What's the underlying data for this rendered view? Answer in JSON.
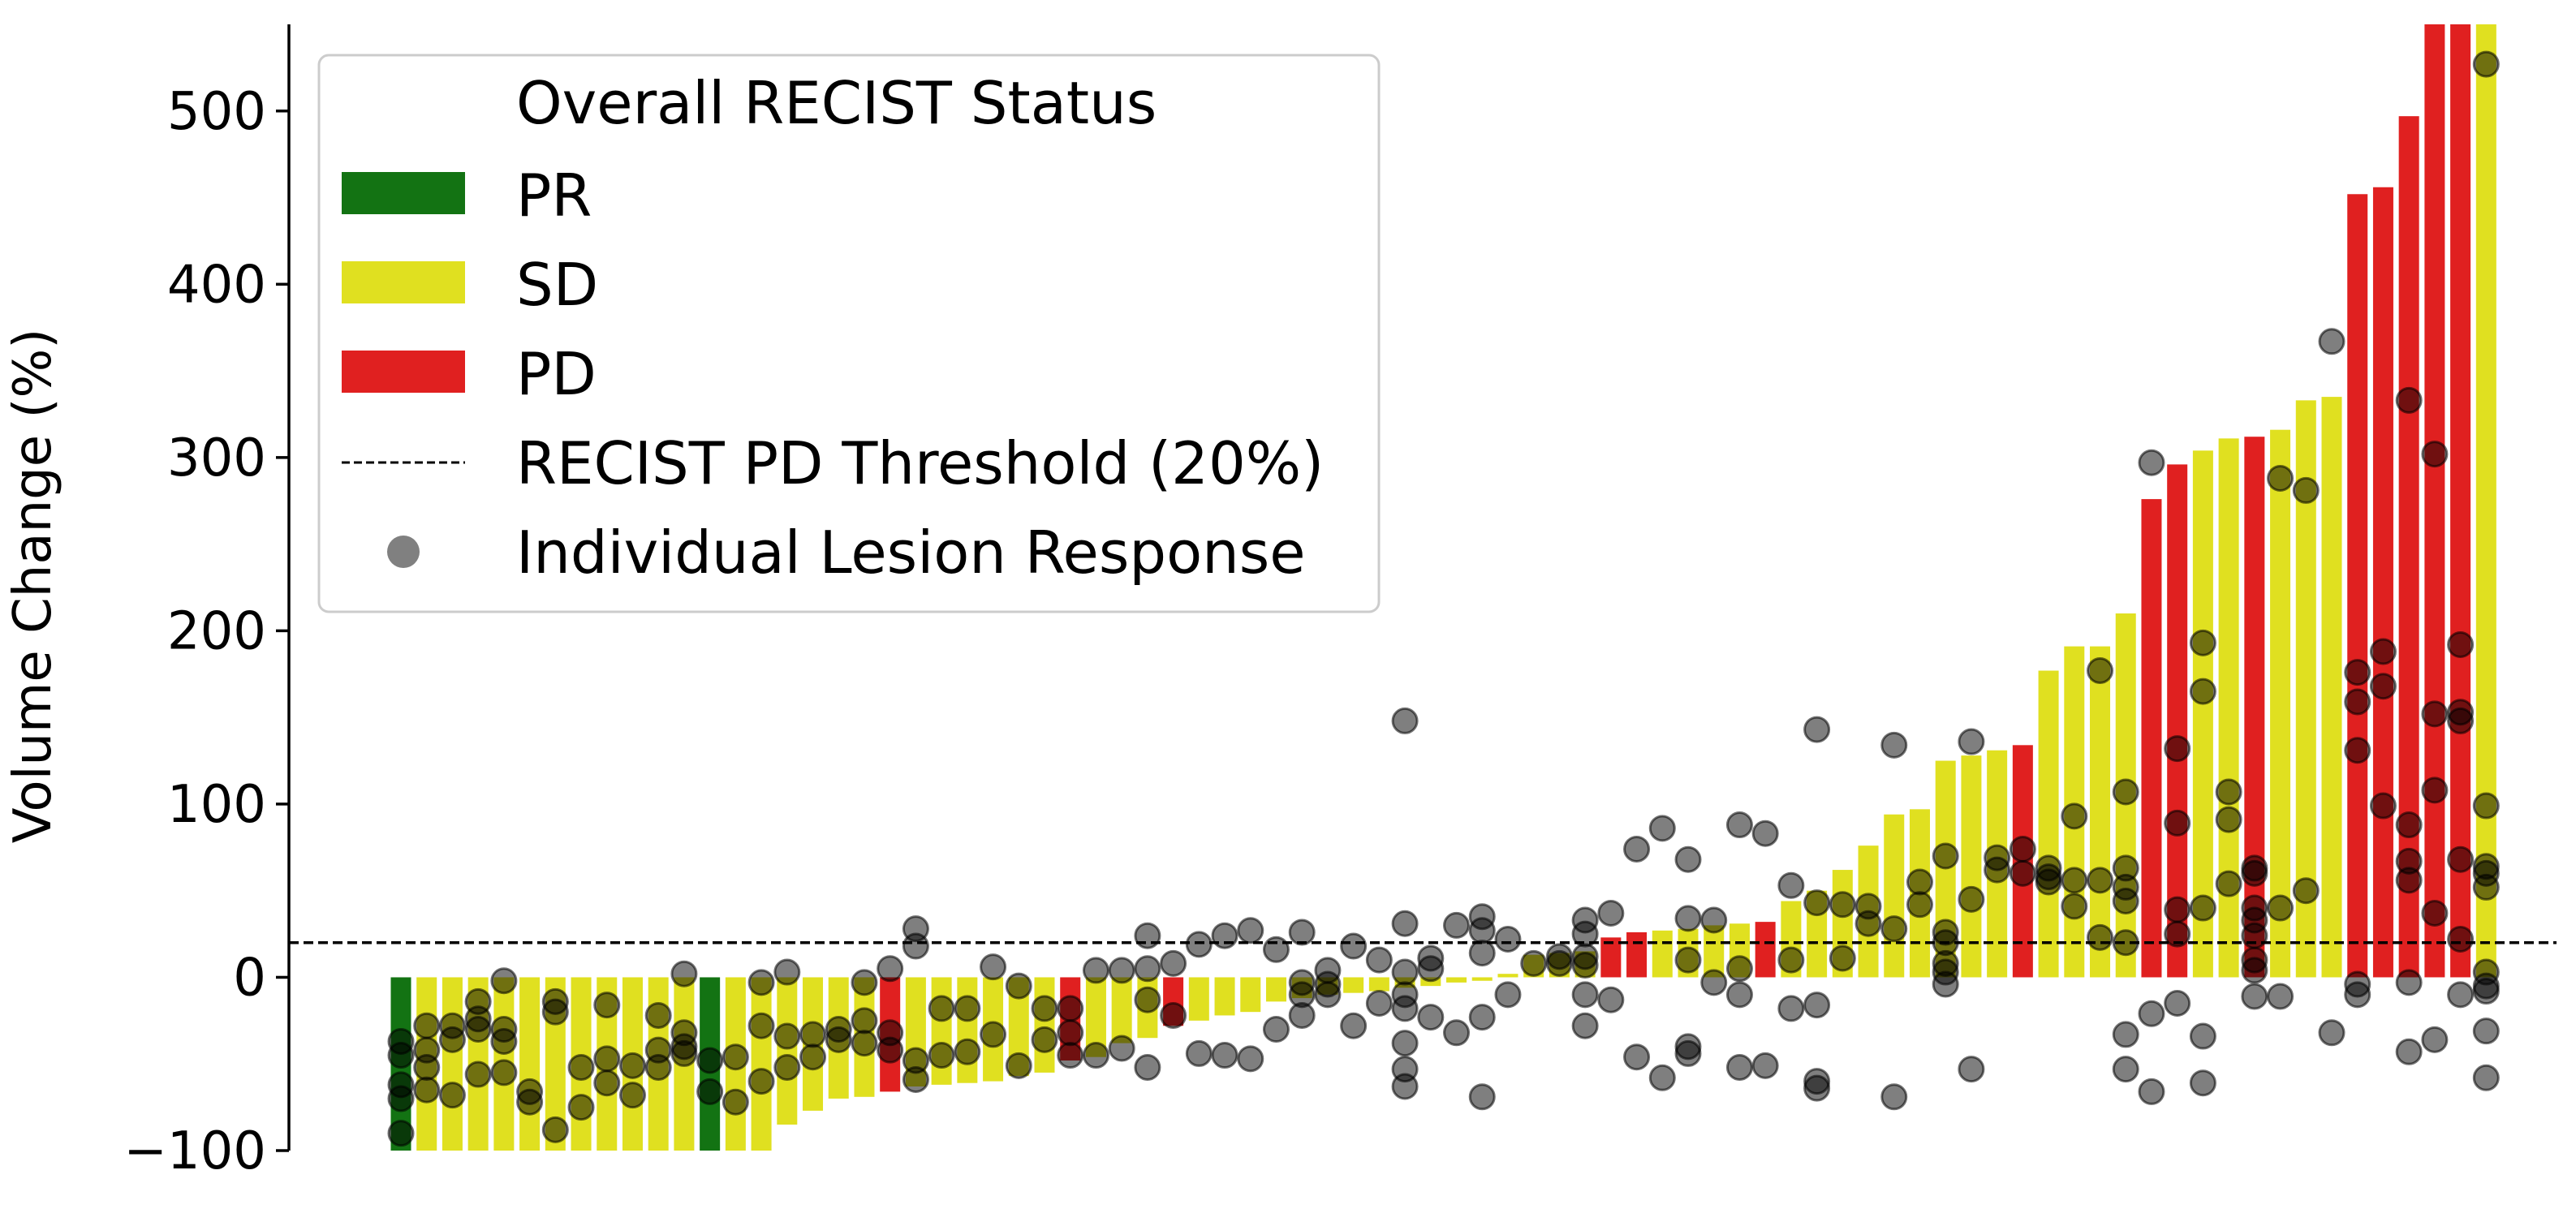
{
  "chart_data": {
    "type": "bar",
    "title": "",
    "xlabel": "",
    "ylabel": "Volume Change (%)",
    "ylim": [
      -100,
      550
    ],
    "yticks": [
      -100,
      0,
      100,
      200,
      300,
      400,
      500
    ],
    "ytick_labels": [
      "−100",
      "0",
      "100",
      "200",
      "300",
      "400",
      "500"
    ],
    "grid": false,
    "colors": {
      "PR": "#137313",
      "SD": "#e0e020",
      "PD": "#e02020",
      "lesion": "#808080"
    },
    "threshold": {
      "label": "RECIST PD Threshold (20%)",
      "value": 20
    },
    "legend": {
      "placement": "top-left",
      "title": "Overall RECIST Status",
      "entries": [
        {
          "label": "PR",
          "kind": "bar",
          "color": "#137313"
        },
        {
          "label": "SD",
          "kind": "bar",
          "color": "#e0e020"
        },
        {
          "label": "PD",
          "kind": "bar",
          "color": "#e02020"
        },
        {
          "label": "RECIST PD Threshold (20%)",
          "kind": "dashed-line",
          "color": "#000000"
        },
        {
          "label": "Individual Lesion Response",
          "kind": "marker",
          "color": "#808080"
        }
      ]
    },
    "bars": [
      {
        "s": "PR",
        "v": -100,
        "p": [
          -90,
          -70,
          -62,
          -45,
          -37
        ]
      },
      {
        "s": "SD",
        "v": -100,
        "p": [
          -65,
          -52,
          -42,
          -28
        ]
      },
      {
        "s": "SD",
        "v": -100,
        "p": [
          -68,
          -36,
          -28
        ]
      },
      {
        "s": "SD",
        "v": -100,
        "p": [
          -56,
          -30,
          -24,
          -14
        ]
      },
      {
        "s": "SD",
        "v": -100,
        "p": [
          -55,
          -37,
          -30,
          -2
        ]
      },
      {
        "s": "SD",
        "v": -100,
        "p": [
          -72,
          -66
        ]
      },
      {
        "s": "SD",
        "v": -100,
        "p": [
          -88,
          -20,
          -14
        ]
      },
      {
        "s": "SD",
        "v": -100,
        "p": [
          -75,
          -52
        ]
      },
      {
        "s": "SD",
        "v": -100,
        "p": [
          -61,
          -47,
          -16
        ]
      },
      {
        "s": "SD",
        "v": -100,
        "p": [
          -68,
          -51
        ]
      },
      {
        "s": "SD",
        "v": -100,
        "p": [
          -52,
          -42,
          -22
        ]
      },
      {
        "s": "SD",
        "v": -100,
        "p": [
          -44,
          -40,
          -32,
          2
        ]
      },
      {
        "s": "PR",
        "v": -100,
        "p": [
          -66,
          -48
        ]
      },
      {
        "s": "SD",
        "v": -100,
        "p": [
          -72,
          -46
        ]
      },
      {
        "s": "SD",
        "v": -100,
        "p": [
          -60,
          -28,
          -3
        ]
      },
      {
        "s": "SD",
        "v": -85,
        "p": [
          -52,
          -34,
          3
        ]
      },
      {
        "s": "SD",
        "v": -77,
        "p": [
          -46,
          -33
        ]
      },
      {
        "s": "SD",
        "v": -70,
        "p": [
          -36,
          -30
        ]
      },
      {
        "s": "SD",
        "v": -69,
        "p": [
          -38,
          -25,
          -3
        ]
      },
      {
        "s": "PD",
        "v": -66,
        "p": [
          -42,
          -32,
          5
        ]
      },
      {
        "s": "SD",
        "v": -63,
        "p": [
          -59,
          -48,
          18,
          28
        ]
      },
      {
        "s": "SD",
        "v": -62,
        "p": [
          -45,
          -18
        ]
      },
      {
        "s": "SD",
        "v": -61,
        "p": [
          -43,
          -18
        ]
      },
      {
        "s": "SD",
        "v": -60,
        "p": [
          -33,
          6
        ]
      },
      {
        "s": "SD",
        "v": -57,
        "p": [
          -51,
          -5
        ]
      },
      {
        "s": "SD",
        "v": -55,
        "p": [
          -36,
          -18
        ]
      },
      {
        "s": "PD",
        "v": -48,
        "p": [
          -45,
          -32,
          -18
        ]
      },
      {
        "s": "SD",
        "v": -46,
        "p": [
          -45,
          4
        ]
      },
      {
        "s": "SD",
        "v": -38,
        "p": [
          -41,
          4
        ]
      },
      {
        "s": "SD",
        "v": -35,
        "p": [
          -52,
          -13,
          5,
          24
        ]
      },
      {
        "s": "PD",
        "v": -28,
        "p": [
          -22,
          8
        ]
      },
      {
        "s": "SD",
        "v": -25,
        "p": [
          -44,
          19
        ]
      },
      {
        "s": "SD",
        "v": -22,
        "p": [
          -45,
          24
        ]
      },
      {
        "s": "SD",
        "v": -20,
        "p": [
          -47,
          27
        ]
      },
      {
        "s": "SD",
        "v": -14,
        "p": [
          -30,
          16
        ]
      },
      {
        "s": "SD",
        "v": -12,
        "p": [
          -22,
          -10,
          -3,
          26
        ]
      },
      {
        "s": "SD",
        "v": -10,
        "p": [
          -10,
          -4,
          4
        ]
      },
      {
        "s": "SD",
        "v": -9,
        "p": [
          -28,
          18
        ]
      },
      {
        "s": "SD",
        "v": -8,
        "p": [
          -15,
          10
        ]
      },
      {
        "s": "SD",
        "v": -6,
        "p": [
          -63,
          -53,
          -38,
          -18,
          -10,
          3,
          31,
          148
        ]
      },
      {
        "s": "SD",
        "v": -5,
        "p": [
          -23,
          5,
          11
        ]
      },
      {
        "s": "SD",
        "v": -3,
        "p": [
          -32,
          30
        ]
      },
      {
        "s": "SD",
        "v": -2,
        "p": [
          -69,
          -23,
          14,
          27,
          35
        ]
      },
      {
        "s": "SD",
        "v": 2,
        "p": [
          -10,
          22
        ]
      },
      {
        "s": "SD",
        "v": 13,
        "p": [
          8
        ]
      },
      {
        "s": "SD",
        "v": 14,
        "p": [
          8,
          12
        ]
      },
      {
        "s": "SD",
        "v": 15,
        "p": [
          -28,
          -10,
          12,
          25,
          33,
          7
        ]
      },
      {
        "s": "PD",
        "v": 23,
        "p": [
          -13,
          37
        ]
      },
      {
        "s": "PD",
        "v": 26,
        "p": [
          -46,
          74
        ]
      },
      {
        "s": "SD",
        "v": 27,
        "p": [
          -58,
          86
        ]
      },
      {
        "s": "SD",
        "v": 28,
        "p": [
          -44,
          -40,
          10,
          34,
          68
        ]
      },
      {
        "s": "SD",
        "v": 30,
        "p": [
          -3,
          33
        ]
      },
      {
        "s": "SD",
        "v": 31,
        "p": [
          -52,
          -10,
          5,
          88
        ]
      },
      {
        "s": "PD",
        "v": 32,
        "p": [
          -51,
          83
        ]
      },
      {
        "s": "SD",
        "v": 44,
        "p": [
          -18,
          10,
          53
        ]
      },
      {
        "s": "SD",
        "v": 50,
        "p": [
          -64,
          -60,
          -16,
          43,
          143
        ]
      },
      {
        "s": "SD",
        "v": 62,
        "p": [
          11,
          42
        ]
      },
      {
        "s": "SD",
        "v": 76,
        "p": [
          31,
          41
        ]
      },
      {
        "s": "SD",
        "v": 94,
        "p": [
          -69,
          28,
          134
        ]
      },
      {
        "s": "SD",
        "v": 97,
        "p": [
          42,
          55
        ]
      },
      {
        "s": "SD",
        "v": 125,
        "p": [
          -4,
          3,
          8,
          20,
          26,
          70
        ]
      },
      {
        "s": "SD",
        "v": 128,
        "p": [
          -53,
          45,
          136
        ]
      },
      {
        "s": "SD",
        "v": 131,
        "p": [
          62,
          69
        ]
      },
      {
        "s": "PD",
        "v": 134,
        "p": [
          60,
          74
        ]
      },
      {
        "s": "SD",
        "v": 177,
        "p": [
          55,
          58,
          63
        ]
      },
      {
        "s": "SD",
        "v": 191,
        "p": [
          41,
          56,
          93
        ]
      },
      {
        "s": "SD",
        "v": 191,
        "p": [
          23,
          56,
          177
        ]
      },
      {
        "s": "SD",
        "v": 210,
        "p": [
          -33,
          -53,
          20,
          44,
          52,
          63,
          107
        ]
      },
      {
        "s": "PD",
        "v": 276,
        "p": [
          -66,
          -21,
          297
        ]
      },
      {
        "s": "PD",
        "v": 296,
        "p": [
          -15,
          25,
          39,
          89,
          132
        ]
      },
      {
        "s": "SD",
        "v": 304,
        "p": [
          -34,
          -61,
          40,
          165,
          193
        ]
      },
      {
        "s": "SD",
        "v": 311,
        "p": [
          54,
          91,
          107
        ]
      },
      {
        "s": "PD",
        "v": 312,
        "p": [
          -11,
          4,
          10,
          24,
          33,
          40,
          60,
          63
        ]
      },
      {
        "s": "SD",
        "v": 316,
        "p": [
          -11,
          40,
          288
        ]
      },
      {
        "s": "SD",
        "v": 333,
        "p": [
          50,
          281
        ]
      },
      {
        "s": "SD",
        "v": 335,
        "p": [
          -32,
          367
        ]
      },
      {
        "s": "PD",
        "v": 452,
        "p": [
          -10,
          -4,
          131,
          159,
          176
        ]
      },
      {
        "s": "PD",
        "v": 456,
        "p": [
          99,
          168,
          188
        ]
      },
      {
        "s": "PD",
        "v": 497,
        "p": [
          -43,
          -3,
          56,
          67,
          88,
          333
        ]
      },
      {
        "s": "PD",
        "v": 550,
        "p": [
          -36,
          37,
          108,
          152,
          302
        ]
      },
      {
        "s": "PD",
        "v": 550,
        "p": [
          -10,
          22,
          68,
          148,
          153,
          192
        ]
      },
      {
        "s": "SD",
        "v": 550,
        "p": [
          -58,
          -31,
          -8,
          -5,
          3,
          52,
          60,
          64,
          99,
          527
        ]
      }
    ]
  }
}
